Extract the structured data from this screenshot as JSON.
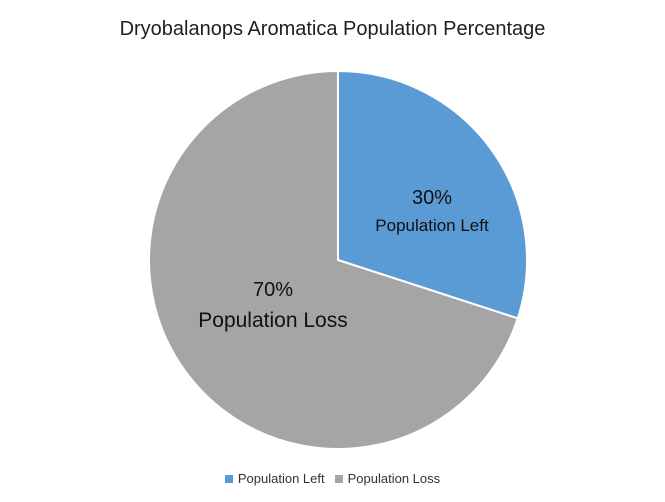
{
  "chart_data": {
    "type": "pie",
    "title": "Dryobalanops Aromatica Population Percentage",
    "slices": [
      {
        "name": "Population Left",
        "value": 30,
        "label_pct": "30%",
        "color": "#5b9bd5"
      },
      {
        "name": "Population Loss",
        "value": 70,
        "label_pct": "70%",
        "color": "#a5a5a5"
      }
    ],
    "legend": {
      "position": "bottom"
    }
  }
}
